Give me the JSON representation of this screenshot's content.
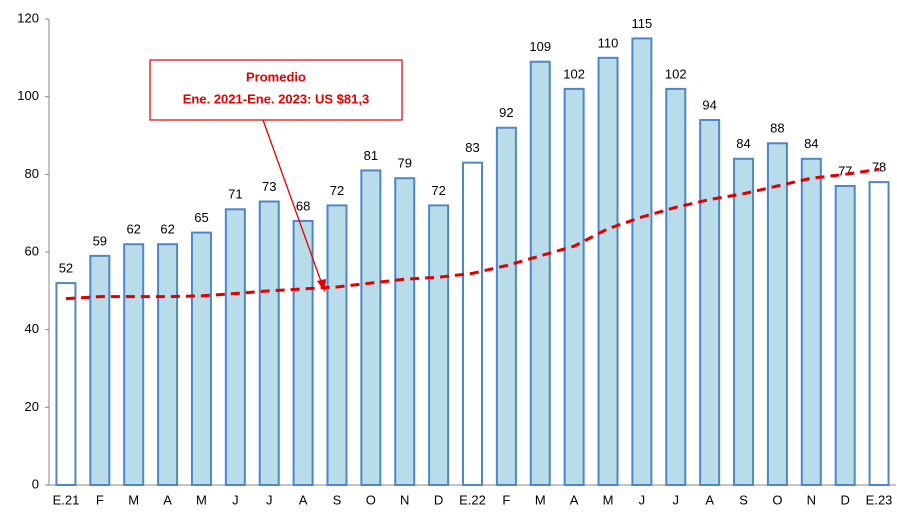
{
  "chart_data": {
    "type": "bar",
    "categories": [
      "E.21",
      "F",
      "M",
      "A",
      "M",
      "J",
      "J",
      "A",
      "S",
      "O",
      "N",
      "D",
      "E.22",
      "F",
      "M",
      "A",
      "M",
      "J",
      "J",
      "A",
      "S",
      "O",
      "N",
      "D",
      "E.23"
    ],
    "values": [
      52,
      59,
      62,
      62,
      65,
      71,
      73,
      68,
      72,
      81,
      79,
      72,
      83,
      92,
      109,
      102,
      110,
      115,
      102,
      94,
      84,
      88,
      84,
      77,
      78
    ],
    "colors": [
      "#ffffff",
      "#b8dcea",
      "#b8dcea",
      "#b8dcea",
      "#b8dcea",
      "#b8dcea",
      "#b8dcea",
      "#b8dcea",
      "#b8dcea",
      "#b8dcea",
      "#b8dcea",
      "#b8dcea",
      "#ffffff",
      "#b8dcea",
      "#b8dcea",
      "#b8dcea",
      "#b8dcea",
      "#b8dcea",
      "#b8dcea",
      "#b8dcea",
      "#b8dcea",
      "#b8dcea",
      "#b8dcea",
      "#b8dcea",
      "#ffffff"
    ],
    "border_color": "#4f86c6",
    "line": {
      "color": "#e00000",
      "values": [
        48,
        48.5,
        48.5,
        48.5,
        48.7,
        49.3,
        50,
        50.5,
        51,
        52,
        53,
        53.5,
        54.5,
        56.5,
        59,
        61.5,
        66,
        69,
        71.5,
        73.5,
        75,
        77,
        79,
        80,
        81.3
      ]
    },
    "annotation": [
      "Promedio",
      "Ene. 2021-Ene. 2023: US $81,3"
    ],
    "ylim": [
      0,
      120
    ],
    "yticks": [
      0,
      20,
      40,
      60,
      80,
      100,
      120
    ],
    "grid": false
  }
}
